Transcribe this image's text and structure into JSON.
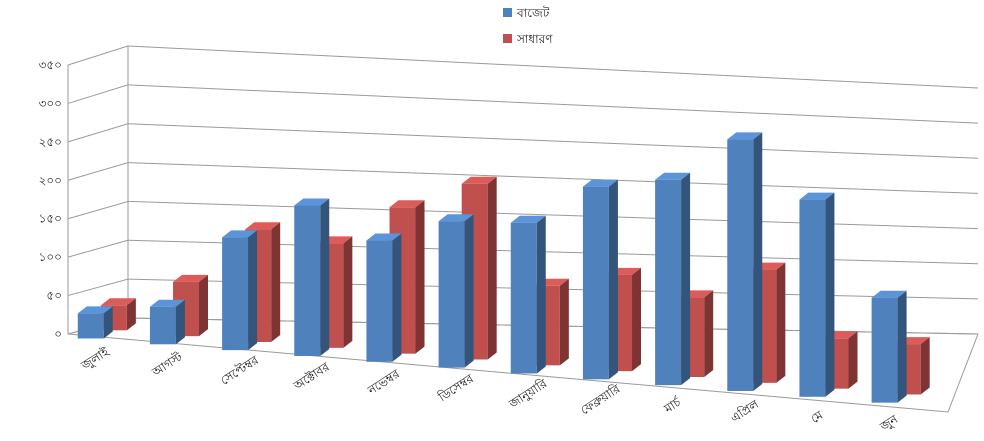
{
  "chart_data": {
    "type": "bar",
    "categories": [
      "জুলাই",
      "আগস্ট",
      "সেপ্টেম্বর",
      "অক্টোবর",
      "নভেম্বর",
      "ডিসেম্বর",
      "জানুয়ারি",
      "ফেব্রুয়ারি",
      "মার্চ",
      "এপ্রিল",
      "মে",
      "জুন"
    ],
    "series": [
      {
        "name": "বাজেট",
        "color": "#4f81bd",
        "values": [
          30,
          45,
          135,
          180,
          145,
          175,
          180,
          230,
          245,
          300,
          235,
          125
        ]
      },
      {
        "name": "সাধারণ",
        "color": "#c0504d",
        "values": [
          30,
          65,
          135,
          125,
          175,
          210,
          95,
          115,
          95,
          135,
          60,
          60
        ]
      }
    ],
    "yticks": [
      "০",
      "৫০",
      "১০০",
      "১৫০",
      "২০০",
      "২৫০",
      "৩০০",
      "৩৫০"
    ],
    "ylim": [
      0,
      350
    ],
    "grid": true,
    "legend_position": "top-center"
  }
}
